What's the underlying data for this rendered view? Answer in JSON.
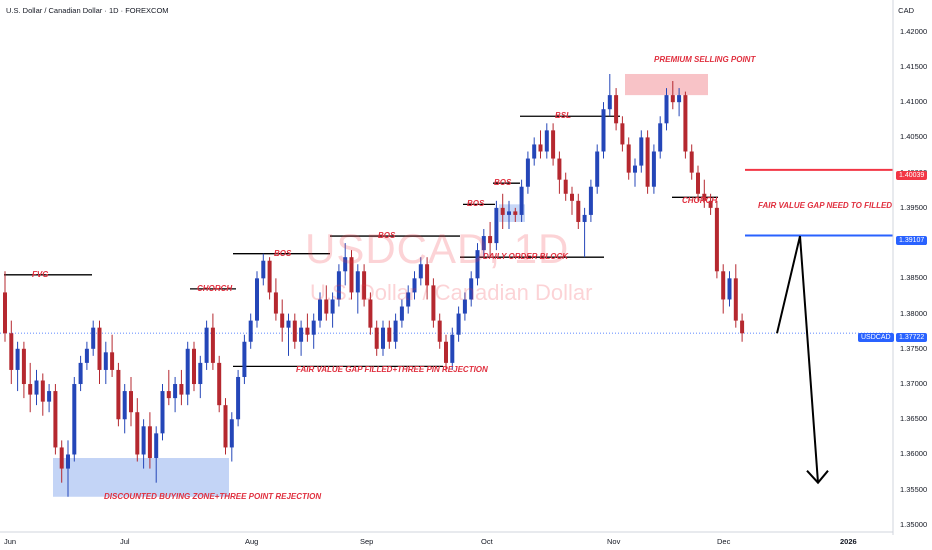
{
  "header": {
    "title": "U.S. Dollar / Canadian Dollar · 1D · FOREXCOM",
    "currency": "CAD"
  },
  "watermark": {
    "symbol": "USDCAD, 1D",
    "name": "U.S. Dollar / Canadian Dollar"
  },
  "price_tags": [
    {
      "value": "1.40039",
      "color": "#f23645"
    },
    {
      "value": "1.39107",
      "color": "#2962ff"
    },
    {
      "label": "USDCAD",
      "value": "1.37722",
      "color": "#2962ff"
    }
  ],
  "annotations": [
    {
      "text": "FVG",
      "price": 1.3855
    },
    {
      "text": "CHORCH",
      "price": 1.3835
    },
    {
      "text": "BOS",
      "price": 1.3885
    },
    {
      "text": "BOS",
      "price": 1.391
    },
    {
      "text": "FAIR VALUE GAP FILLED+THREE PIN REJECTION",
      "price": 1.372
    },
    {
      "text": "DISCOUNTED BUYING ZONE+THREE POINT REJECTION",
      "price": 1.354
    },
    {
      "text": "DAILY ORDER BLOCK",
      "price": 1.388
    },
    {
      "text": "BOS",
      "price": 1.3955
    },
    {
      "text": "BOS",
      "price": 1.3985
    },
    {
      "text": "BSL",
      "price": 1.408
    },
    {
      "text": "PREMIUM SELLING POINT",
      "price": 1.416
    },
    {
      "text": "CHORCH",
      "price": 1.396
    },
    {
      "text": "FAIR VALUE GAP NEED TO FILLED",
      "price": 1.3952
    }
  ],
  "colors": {
    "bull": "#2446b8",
    "bear": "#b5282f",
    "red_line": "#f23645",
    "blue_line": "#2962ff",
    "premium_zone": "#f7b9bd",
    "discount_zone": "#b9cdf5",
    "projection": "#000000"
  },
  "chart_data": {
    "type": "candlestick",
    "title": "U.S. Dollar / Canadian Dollar · 1D · FOREXCOM",
    "symbol": "USDCAD",
    "timeframe": "1D",
    "y_axis": {
      "range": [
        1.349,
        1.4245
      ],
      "ticks": [
        "1.42000",
        "1.41500",
        "1.41000",
        "1.40500",
        "1.40000",
        "1.39500",
        "1.39000",
        "1.38500",
        "1.38000",
        "1.37500",
        "1.37000",
        "1.36500",
        "1.36000",
        "1.35500",
        "1.35000"
      ]
    },
    "x_axis": {
      "ticks": [
        "Jun",
        "Jul",
        "Aug",
        "Sep",
        "Oct",
        "Nov",
        "Dec",
        "2026"
      ]
    },
    "grid": false,
    "candles": [
      [
        1.383,
        1.386,
        1.376,
        1.3772
      ],
      [
        1.3772,
        1.379,
        1.37,
        1.372
      ],
      [
        1.372,
        1.376,
        1.369,
        1.375
      ],
      [
        1.375,
        1.376,
        1.368,
        1.37
      ],
      [
        1.37,
        1.373,
        1.366,
        1.3685
      ],
      [
        1.3685,
        1.372,
        1.367,
        1.3705
      ],
      [
        1.3705,
        1.3715,
        1.3655,
        1.3675
      ],
      [
        1.3675,
        1.37,
        1.366,
        1.369
      ],
      [
        1.369,
        1.37,
        1.36,
        1.361
      ],
      [
        1.361,
        1.362,
        1.356,
        1.358
      ],
      [
        1.358,
        1.362,
        1.354,
        1.36
      ],
      [
        1.36,
        1.371,
        1.359,
        1.37
      ],
      [
        1.37,
        1.374,
        1.369,
        1.373
      ],
      [
        1.373,
        1.376,
        1.372,
        1.375
      ],
      [
        1.375,
        1.379,
        1.374,
        1.378
      ],
      [
        1.378,
        1.379,
        1.37,
        1.372
      ],
      [
        1.372,
        1.376,
        1.37,
        1.3745
      ],
      [
        1.3745,
        1.377,
        1.371,
        1.372
      ],
      [
        1.372,
        1.373,
        1.364,
        1.365
      ],
      [
        1.365,
        1.37,
        1.363,
        1.369
      ],
      [
        1.369,
        1.371,
        1.364,
        1.366
      ],
      [
        1.366,
        1.368,
        1.359,
        1.36
      ],
      [
        1.36,
        1.365,
        1.358,
        1.364
      ],
      [
        1.364,
        1.366,
        1.358,
        1.3595
      ],
      [
        1.3595,
        1.364,
        1.356,
        1.363
      ],
      [
        1.363,
        1.37,
        1.362,
        1.369
      ],
      [
        1.369,
        1.372,
        1.367,
        1.368
      ],
      [
        1.368,
        1.371,
        1.366,
        1.37
      ],
      [
        1.37,
        1.372,
        1.367,
        1.3685
      ],
      [
        1.3685,
        1.376,
        1.367,
        1.375
      ],
      [
        1.375,
        1.376,
        1.369,
        1.37
      ],
      [
        1.37,
        1.374,
        1.368,
        1.373
      ],
      [
        1.373,
        1.379,
        1.372,
        1.378
      ],
      [
        1.378,
        1.38,
        1.372,
        1.373
      ],
      [
        1.373,
        1.374,
        1.366,
        1.367
      ],
      [
        1.367,
        1.368,
        1.36,
        1.361
      ],
      [
        1.361,
        1.366,
        1.359,
        1.365
      ],
      [
        1.365,
        1.372,
        1.364,
        1.371
      ],
      [
        1.371,
        1.377,
        1.37,
        1.376
      ],
      [
        1.376,
        1.38,
        1.375,
        1.379
      ],
      [
        1.379,
        1.386,
        1.378,
        1.385
      ],
      [
        1.385,
        1.3885,
        1.384,
        1.3875
      ],
      [
        1.3875,
        1.388,
        1.382,
        1.383
      ],
      [
        1.383,
        1.385,
        1.379,
        1.38
      ],
      [
        1.38,
        1.382,
        1.376,
        1.378
      ],
      [
        1.378,
        1.38,
        1.374,
        1.379
      ],
      [
        1.379,
        1.38,
        1.375,
        1.376
      ],
      [
        1.376,
        1.379,
        1.374,
        1.378
      ],
      [
        1.378,
        1.38,
        1.376,
        1.377
      ],
      [
        1.377,
        1.38,
        1.375,
        1.379
      ],
      [
        1.379,
        1.383,
        1.378,
        1.382
      ],
      [
        1.382,
        1.384,
        1.379,
        1.38
      ],
      [
        1.38,
        1.383,
        1.378,
        1.382
      ],
      [
        1.382,
        1.387,
        1.381,
        1.386
      ],
      [
        1.386,
        1.39,
        1.384,
        1.388
      ],
      [
        1.388,
        1.389,
        1.382,
        1.383
      ],
      [
        1.383,
        1.387,
        1.38,
        1.386
      ],
      [
        1.386,
        1.387,
        1.381,
        1.382
      ],
      [
        1.382,
        1.383,
        1.377,
        1.378
      ],
      [
        1.378,
        1.379,
        1.374,
        1.375
      ],
      [
        1.375,
        1.379,
        1.374,
        1.378
      ],
      [
        1.378,
        1.379,
        1.375,
        1.376
      ],
      [
        1.376,
        1.38,
        1.375,
        1.379
      ],
      [
        1.379,
        1.382,
        1.378,
        1.381
      ],
      [
        1.381,
        1.384,
        1.38,
        1.383
      ],
      [
        1.383,
        1.386,
        1.382,
        1.385
      ],
      [
        1.385,
        1.388,
        1.384,
        1.387
      ],
      [
        1.387,
        1.388,
        1.382,
        1.384
      ],
      [
        1.384,
        1.385,
        1.378,
        1.379
      ],
      [
        1.379,
        1.38,
        1.375,
        1.376
      ],
      [
        1.376,
        1.377,
        1.372,
        1.373
      ],
      [
        1.373,
        1.378,
        1.372,
        1.377
      ],
      [
        1.377,
        1.381,
        1.376,
        1.38
      ],
      [
        1.38,
        1.383,
        1.379,
        1.382
      ],
      [
        1.382,
        1.386,
        1.381,
        1.385
      ],
      [
        1.385,
        1.39,
        1.384,
        1.389
      ],
      [
        1.389,
        1.392,
        1.388,
        1.391
      ],
      [
        1.391,
        1.393,
        1.388,
        1.39
      ],
      [
        1.39,
        1.396,
        1.389,
        1.395
      ],
      [
        1.395,
        1.397,
        1.392,
        1.394
      ],
      [
        1.394,
        1.396,
        1.392,
        1.3945
      ],
      [
        1.3945,
        1.395,
        1.393,
        1.394
      ],
      [
        1.394,
        1.399,
        1.393,
        1.398
      ],
      [
        1.398,
        1.403,
        1.397,
        1.402
      ],
      [
        1.402,
        1.405,
        1.401,
        1.404
      ],
      [
        1.404,
        1.406,
        1.402,
        1.403
      ],
      [
        1.403,
        1.407,
        1.402,
        1.406
      ],
      [
        1.406,
        1.407,
        1.401,
        1.402
      ],
      [
        1.402,
        1.403,
        1.397,
        1.399
      ],
      [
        1.399,
        1.4,
        1.396,
        1.397
      ],
      [
        1.397,
        1.398,
        1.394,
        1.396
      ],
      [
        1.396,
        1.397,
        1.392,
        1.393
      ],
      [
        1.393,
        1.395,
        1.388,
        1.394
      ],
      [
        1.394,
        1.399,
        1.393,
        1.398
      ],
      [
        1.398,
        1.404,
        1.397,
        1.403
      ],
      [
        1.403,
        1.41,
        1.402,
        1.409
      ],
      [
        1.409,
        1.414,
        1.408,
        1.411
      ],
      [
        1.411,
        1.412,
        1.406,
        1.407
      ],
      [
        1.407,
        1.408,
        1.403,
        1.404
      ],
      [
        1.404,
        1.405,
        1.399,
        1.4
      ],
      [
        1.4,
        1.402,
        1.398,
        1.401
      ],
      [
        1.401,
        1.406,
        1.4,
        1.405
      ],
      [
        1.405,
        1.406,
        1.397,
        1.398
      ],
      [
        1.398,
        1.404,
        1.397,
        1.403
      ],
      [
        1.403,
        1.408,
        1.402,
        1.407
      ],
      [
        1.407,
        1.412,
        1.406,
        1.411
      ],
      [
        1.411,
        1.413,
        1.409,
        1.41
      ],
      [
        1.41,
        1.412,
        1.408,
        1.411
      ],
      [
        1.411,
        1.4115,
        1.402,
        1.403
      ],
      [
        1.403,
        1.404,
        1.399,
        1.4
      ],
      [
        1.4,
        1.401,
        1.396,
        1.397
      ],
      [
        1.397,
        1.399,
        1.395,
        1.396
      ],
      [
        1.396,
        1.397,
        1.394,
        1.395
      ],
      [
        1.395,
        1.396,
        1.385,
        1.386
      ],
      [
        1.386,
        1.387,
        1.38,
        1.382
      ],
      [
        1.382,
        1.386,
        1.381,
        1.385
      ],
      [
        1.385,
        1.387,
        1.378,
        1.379
      ],
      [
        1.379,
        1.38,
        1.376,
        1.3772
      ]
    ],
    "horizontal_lines": [
      {
        "price": 1.40039,
        "color": "red"
      },
      {
        "price": 1.39107,
        "color": "blue"
      },
      {
        "price": 1.37722,
        "color": "blue",
        "style": "dotted"
      }
    ],
    "zones": [
      {
        "name": "premium",
        "from": 1.411,
        "to": 1.414
      },
      {
        "name": "discount",
        "from": 1.354,
        "to": 1.3595
      }
    ],
    "projection": [
      1.3772,
      1.391,
      1.356
    ]
  }
}
